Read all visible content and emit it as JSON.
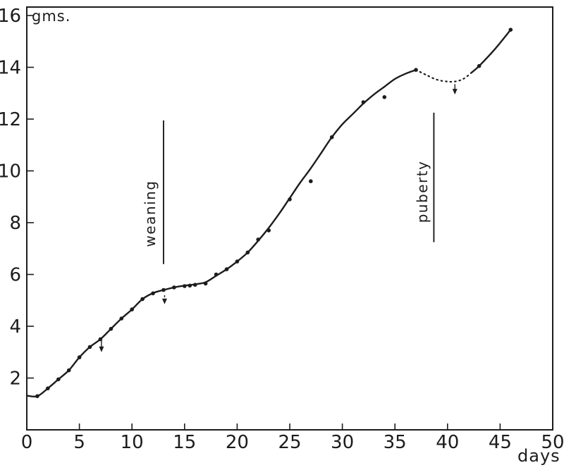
{
  "figure": {
    "background": "#ffffff",
    "ink": "#1c1c1c"
  },
  "chart_data": {
    "type": "line",
    "title": "",
    "xlabel": "days",
    "ylabel": "gms.",
    "xlim": [
      0,
      50
    ],
    "ylim": [
      0,
      16
    ],
    "x_ticks": [
      0,
      5,
      10,
      15,
      20,
      25,
      30,
      35,
      40,
      45,
      50
    ],
    "y_ticks": [
      2,
      4,
      6,
      8,
      10,
      12,
      14,
      16
    ],
    "grid": false,
    "frame": true,
    "legend": "none",
    "series": [
      {
        "name": "growth-curve-main",
        "style": "solid",
        "points": [
          [
            0,
            1.32
          ],
          [
            1,
            1.3
          ],
          [
            2,
            1.6
          ],
          [
            3,
            1.95
          ],
          [
            4,
            2.3
          ],
          [
            5,
            2.8
          ],
          [
            6,
            3.2
          ],
          [
            7,
            3.5
          ],
          [
            8,
            3.9
          ],
          [
            9,
            4.3
          ],
          [
            10,
            4.65
          ],
          [
            11,
            5.05
          ],
          [
            12,
            5.28
          ],
          [
            13,
            5.4
          ],
          [
            14,
            5.5
          ],
          [
            15,
            5.57
          ],
          [
            16,
            5.62
          ],
          [
            17,
            5.7
          ],
          [
            18,
            5.95
          ],
          [
            19,
            6.2
          ],
          [
            20,
            6.5
          ],
          [
            21,
            6.85
          ],
          [
            22,
            7.3
          ],
          [
            23,
            7.8
          ],
          [
            24,
            8.35
          ],
          [
            25,
            8.95
          ],
          [
            26,
            9.55
          ],
          [
            27,
            10.1
          ],
          [
            28,
            10.7
          ],
          [
            29,
            11.3
          ],
          [
            30,
            11.8
          ],
          [
            31,
            12.2
          ],
          [
            32,
            12.6
          ],
          [
            33,
            12.95
          ],
          [
            34,
            13.25
          ],
          [
            35,
            13.55
          ],
          [
            36,
            13.75
          ],
          [
            37,
            13.9
          ]
        ]
      },
      {
        "name": "growth-curve-pubertal-dip",
        "style": "dotted",
        "points": [
          [
            37,
            13.9
          ],
          [
            38,
            13.7
          ],
          [
            39,
            13.52
          ],
          [
            40,
            13.45
          ],
          [
            40.7,
            13.45
          ],
          [
            41.5,
            13.55
          ],
          [
            42.3,
            13.8
          ]
        ]
      },
      {
        "name": "growth-curve-post-dip",
        "style": "solid",
        "points": [
          [
            42.3,
            13.8
          ],
          [
            43,
            14.05
          ],
          [
            44.5,
            14.7
          ],
          [
            46,
            15.45
          ]
        ]
      }
    ],
    "data_points": [
      [
        1,
        1.3
      ],
      [
        2,
        1.6
      ],
      [
        3,
        1.95
      ],
      [
        4,
        2.3
      ],
      [
        5,
        2.8
      ],
      [
        6,
        3.2
      ],
      [
        7,
        3.5
      ],
      [
        8,
        3.9
      ],
      [
        9,
        4.3
      ],
      [
        10,
        4.65
      ],
      [
        11,
        5.05
      ],
      [
        12,
        5.27
      ],
      [
        13,
        5.4
      ],
      [
        14,
        5.5
      ],
      [
        15,
        5.55
      ],
      [
        15.5,
        5.57
      ],
      [
        16,
        5.6
      ],
      [
        17,
        5.65
      ],
      [
        18,
        6.0
      ],
      [
        19,
        6.2
      ],
      [
        20,
        6.5
      ],
      [
        21,
        6.85
      ],
      [
        22,
        7.35
      ],
      [
        23,
        7.7
      ],
      [
        25,
        8.9
      ],
      [
        27,
        9.6
      ],
      [
        29,
        11.3
      ],
      [
        32,
        12.65
      ],
      [
        34,
        12.85
      ],
      [
        37,
        13.9
      ],
      [
        43,
        14.05
      ],
      [
        46,
        15.45
      ]
    ],
    "annotations": [
      {
        "label": "weaning",
        "day": 13,
        "line_top_g": 11.95,
        "line_bottom_g": 6.4,
        "label_g": 8.35,
        "label_dx": -19
      },
      {
        "label": "puberty",
        "day": 38.7,
        "line_top_g": 12.25,
        "line_bottom_g": 7.25,
        "label_g": 9.2,
        "label_dx": -16
      }
    ],
    "arrows": [
      {
        "day": 7.1,
        "tail_g": 3.45,
        "tip_g": 3.0,
        "shaft": "solid"
      },
      {
        "day": 13.1,
        "tail_g": 5.2,
        "tip_g": 4.85,
        "shaft": "dashed"
      },
      {
        "day": 40.7,
        "tail_g": 13.35,
        "tip_g": 12.95,
        "shaft": "solid"
      }
    ]
  }
}
